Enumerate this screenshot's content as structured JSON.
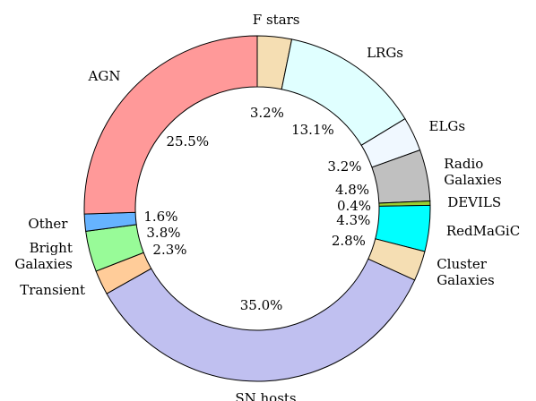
{
  "chart_data": {
    "type": "donut",
    "categories": [
      "F stars",
      "LRGs",
      "ELGs",
      "Radio\nGalaxies",
      "DEVILS",
      "RedMaGiC",
      "Cluster\nGalaxies",
      "SN hosts",
      "Transient",
      "Bright\nGalaxies",
      "Other",
      "AGN"
    ],
    "values": [
      3.2,
      13.1,
      3.2,
      4.8,
      0.4,
      4.3,
      2.8,
      35.0,
      2.3,
      3.8,
      1.6,
      25.5
    ],
    "value_labels": [
      "3.2%",
      "13.1%",
      "3.2%",
      "4.8%",
      "0.4%",
      "4.3%",
      "2.8%",
      "35.0%",
      "2.3%",
      "3.8%",
      "1.6%",
      "25.5%"
    ],
    "colors": [
      "#f5deb3",
      "#e0ffff",
      "#f0f8ff",
      "#c0c0c0",
      "#9acd32",
      "#00ffff",
      "#f5deb3",
      "#c0c0f0",
      "#ffcc99",
      "#98fb98",
      "#66b3ff",
      "#ff9999"
    ]
  }
}
